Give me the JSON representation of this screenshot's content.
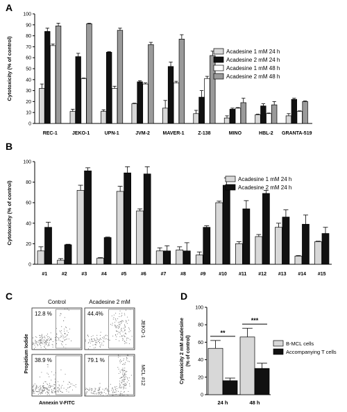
{
  "panel_labels": {
    "a": "A",
    "b": "B",
    "c": "C",
    "d": "D"
  },
  "colors": {
    "lightgray": "#d8d8d8",
    "black": "#111111",
    "white": "#ffffff",
    "midgray": "#9a9a9a",
    "scatter": "#6d6d6d"
  },
  "chart_data": [
    {
      "panel": "A",
      "type": "bar",
      "ylabel": "Cytotoxicity (% of control)",
      "ylim": [
        0,
        100
      ],
      "yticks": [
        0,
        10,
        20,
        30,
        40,
        50,
        60,
        70,
        80,
        90,
        100
      ],
      "categories": [
        "REC-1",
        "JEKO-1",
        "UPN-1",
        "JVM-2",
        "MAVER-1",
        "Z-138",
        "MINO",
        "HBL-2",
        "GRANTA-519"
      ],
      "legend_position": "right",
      "series": [
        {
          "name": "Acadesine 1 mM 24 h",
          "color": "lightgray",
          "values": [
            32,
            11,
            11,
            18,
            14,
            9,
            5,
            8,
            7
          ],
          "errors": [
            4,
            2,
            1.5,
            0.5,
            7,
            3,
            2,
            0.5,
            2
          ]
        },
        {
          "name": "Acadesine 2 mM 24 h",
          "color": "black",
          "values": [
            84,
            61,
            65,
            38,
            52,
            24,
            13,
            16,
            22
          ],
          "errors": [
            3,
            3,
            0.5,
            1,
            4,
            6,
            1,
            2,
            1
          ]
        },
        {
          "name": "Acadesine 1 mM 48 h",
          "color": "white",
          "values": [
            71,
            41,
            32,
            36,
            37,
            41,
            14,
            9,
            11
          ],
          "errors": [
            1.5,
            0.5,
            2,
            1,
            1.5,
            2,
            0.5,
            0.5,
            0.5
          ]
        },
        {
          "name": "Acadesine 2 mM 48 h",
          "color": "midgray",
          "values": [
            89,
            91,
            85,
            72,
            77,
            62,
            19,
            17,
            20
          ],
          "errors": [
            2.5,
            0.5,
            2,
            2,
            4,
            4,
            4,
            3,
            0.5
          ]
        }
      ]
    },
    {
      "panel": "B",
      "type": "bar",
      "ylabel": "Cytotoxicity (% of control)",
      "ylim": [
        0,
        100
      ],
      "yticks": [
        0,
        20,
        40,
        60,
        80,
        100
      ],
      "categories": [
        "#1",
        "#2",
        "#3",
        "#4",
        "#5",
        "#6",
        "#7",
        "#8",
        "#9",
        "#10",
        "#11",
        "#12",
        "#13",
        "#14",
        "#15"
      ],
      "legend_position": "top-right",
      "series": [
        {
          "name": "Acadesine 1 mM 24 h",
          "color": "lightgray",
          "values": [
            13,
            4,
            72,
            6,
            71,
            52,
            13,
            14,
            9,
            60,
            20,
            27,
            36,
            8,
            22
          ],
          "errors": [
            4,
            1.5,
            5,
            0.5,
            5,
            2,
            3,
            3,
            3,
            1.5,
            2,
            2,
            4,
            0.5,
            0.5
          ]
        },
        {
          "name": "Acadesine 2 mM 24 h",
          "color": "black",
          "values": [
            36,
            19,
            91,
            26,
            89,
            88,
            13,
            13,
            36,
            77,
            54,
            69,
            46,
            39,
            30
          ],
          "errors": [
            5,
            0.5,
            3,
            0.5,
            6,
            7,
            5,
            8,
            1.5,
            7,
            8,
            3,
            7,
            9,
            6
          ]
        }
      ]
    },
    {
      "panel": "C",
      "type": "scatter",
      "xlabel": "Annexin V-FITC",
      "ylabel": "Propidium Iodide",
      "column_titles": [
        "Control",
        "Acadesine 2 mM"
      ],
      "row_labels": [
        "JEKO-1",
        "MCL #12"
      ],
      "quadrant_percentages": [
        [
          "12.8 %",
          "44.4%"
        ],
        [
          "38.9 %",
          "79.1 %"
        ]
      ]
    },
    {
      "panel": "D",
      "type": "bar",
      "ylabel": "Cytotoxicity 2 mM acadesine\n(% of control)",
      "ylim": [
        0,
        100
      ],
      "yticks": [
        0,
        20,
        40,
        60,
        80,
        100
      ],
      "categories": [
        "24 h",
        "48 h"
      ],
      "legend_position": "right",
      "significance": [
        "**",
        "***"
      ],
      "series": [
        {
          "name": "B-MCL cells",
          "color": "lightgray",
          "values": [
            53,
            66
          ],
          "errors": [
            9,
            10
          ]
        },
        {
          "name": "Accompanying T cells",
          "color": "black",
          "values": [
            16,
            30
          ],
          "errors": [
            3,
            6
          ]
        }
      ]
    }
  ]
}
